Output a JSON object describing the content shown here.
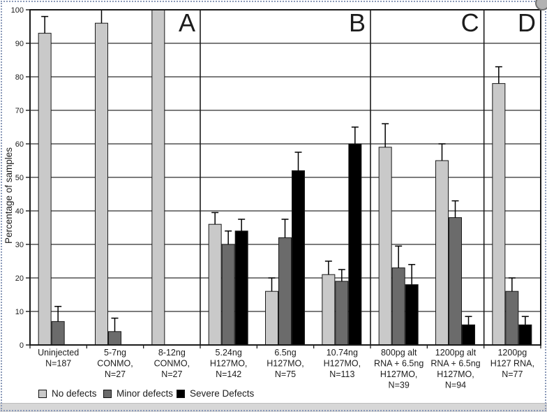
{
  "chart_data": {
    "type": "bar",
    "title": "",
    "ylabel": "Percentage of samples",
    "ylim": [
      0,
      100
    ],
    "ytick_step": 10,
    "grid": true,
    "legend_position": "bottom",
    "panels": [
      {
        "label": "A",
        "groups": 3
      },
      {
        "label": "B",
        "groups": 3
      },
      {
        "label": "C",
        "groups": 2
      },
      {
        "label": "D",
        "groups": 1
      }
    ],
    "categories": [
      [
        "Uninjected",
        "N=187"
      ],
      [
        "5-7ng",
        "CONMO,",
        "N=27"
      ],
      [
        "8-12ng",
        "CONMO,",
        "N=27"
      ],
      [
        "5.24ng",
        "H127MO,",
        "N=142"
      ],
      [
        "6.5ng",
        "H127MO,",
        "N=75"
      ],
      [
        "10.74ng",
        "H127MO,",
        "N=113"
      ],
      [
        "800pg alt",
        "RNA + 6.5ng",
        "H127MO,",
        "N=39"
      ],
      [
        "1200pg alt",
        "RNA + 6.5ng",
        "H127MO,",
        "N=94"
      ],
      [
        "1200pg",
        "H127 RNA,",
        "N=77"
      ]
    ],
    "series": [
      {
        "name": "No defects",
        "color": "#c9c9c9",
        "values": [
          93,
          96,
          100,
          36,
          16,
          21,
          59,
          55,
          78
        ],
        "errors": [
          5,
          4,
          0,
          3.5,
          4,
          4,
          7,
          5,
          5
        ]
      },
      {
        "name": "Minor defects",
        "color": "#6b6b6b",
        "values": [
          7,
          4,
          null,
          30,
          32,
          19,
          23,
          38,
          16
        ],
        "errors": [
          4.5,
          4,
          null,
          4,
          5.5,
          3.5,
          6.5,
          5,
          4
        ]
      },
      {
        "name": "Severe Defects",
        "color": "#000000",
        "values": [
          null,
          null,
          null,
          34,
          52,
          60,
          18,
          6,
          6
        ],
        "errors": [
          null,
          null,
          null,
          3.5,
          5.5,
          5,
          6,
          2.5,
          2.5
        ]
      }
    ],
    "legend": [
      {
        "label": "No defects",
        "color": "#c9c9c9"
      },
      {
        "label": "Minor defects",
        "color": "#6b6b6b"
      },
      {
        "label": "Severe Defects",
        "color": "#000000"
      }
    ]
  },
  "decorations": {
    "border_color": "#8a99b8",
    "handle_color": "#b2b2b2",
    "strip_color": "#d7d7d7"
  }
}
